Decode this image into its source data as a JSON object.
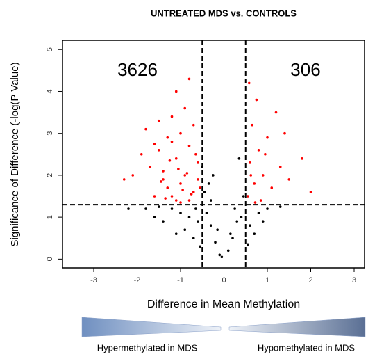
{
  "chart_data": {
    "type": "scatter",
    "title": "UNTREATED MDS vs. CONTROLS",
    "x_label": "Difference  in Mean Methylation",
    "y_label": "Significance of Difference (-log(P Value)",
    "xlim": [
      -3.72,
      3.24
    ],
    "ylim": [
      -0.21,
      5.22
    ],
    "xticks": [
      -3,
      -2,
      -1,
      0,
      1,
      2,
      3
    ],
    "yticks": [
      0,
      1,
      2,
      3,
      4,
      5
    ],
    "thresholds": {
      "x": [
        -0.5,
        0.5
      ],
      "y": 1.3
    },
    "annotations": [
      "3626",
      "306"
    ],
    "direction_labels": [
      "Hypermethylated in MDS",
      "Hypomethylated in MDS"
    ],
    "series": [
      {
        "color": "#000000",
        "x": [
          -0.1,
          0.1,
          -0.2,
          0.2,
          -0.3,
          0.3,
          -0.4,
          0.4,
          -0.6,
          -0.8,
          -1.0,
          -1.2,
          -1.5,
          -0.7,
          0.6,
          0.8,
          1.0,
          -0.45,
          0.45,
          -0.25,
          -0.9,
          -1.4,
          -1.8,
          -2.2,
          0.7,
          1.3,
          -0.35,
          0.15,
          -0.05,
          -1.1,
          -0.55,
          0.55,
          -0.65,
          0.9,
          -0.15,
          0.25,
          -0.5,
          -0.3,
          0.35,
          -1.6
        ],
        "y": [
          0.1,
          0.2,
          0.4,
          0.5,
          0.8,
          0.9,
          1.1,
          1.0,
          0.9,
          1.0,
          1.1,
          1.2,
          1.25,
          0.5,
          0.8,
          1.1,
          1.2,
          1.6,
          1.5,
          2.0,
          0.7,
          0.9,
          1.2,
          1.2,
          0.6,
          1.25,
          1.8,
          0.6,
          0.05,
          0.6,
          0.3,
          0.35,
          1.2,
          0.9,
          0.7,
          1.2,
          2.2,
          1.4,
          2.4,
          1.0
        ]
      },
      {
        "color": "#ff0000",
        "x": [
          -1.2,
          -1.0,
          -0.8,
          -1.4,
          -0.7,
          -1.1,
          -0.9,
          -1.3,
          -0.6,
          -1.5,
          -1.7,
          -1.0,
          -0.8,
          -1.2,
          -0.6,
          -1.9,
          -1.6,
          -1.3,
          -0.9,
          -0.7,
          -1.1,
          -1.4,
          -2.1,
          -0.8,
          -1.0,
          -1.2,
          -0.55,
          -1.8,
          -1.5,
          -0.65,
          -1.35,
          -1.05,
          -0.75,
          -2.3,
          -1.25,
          -0.95,
          -1.45,
          -0.85,
          -1.6,
          -1.1
        ],
        "y": [
          1.5,
          1.8,
          1.4,
          2.1,
          1.6,
          2.4,
          2.0,
          1.7,
          1.9,
          2.6,
          2.2,
          3.0,
          2.7,
          3.4,
          2.3,
          2.5,
          1.5,
          2.9,
          3.6,
          3.2,
          4.0,
          1.9,
          2.0,
          4.3,
          1.35,
          2.8,
          1.7,
          3.1,
          3.3,
          2.5,
          1.45,
          2.15,
          1.55,
          1.9,
          2.35,
          1.65,
          1.85,
          2.05,
          2.75,
          1.4
        ]
      },
      {
        "color": "#ff0000",
        "x": [
          0.55,
          0.7,
          0.6,
          0.9,
          1.1,
          0.8,
          1.3,
          0.65,
          1.0,
          1.5,
          0.75,
          1.8,
          0.58,
          1.2,
          0.85,
          2.0,
          0.95,
          0.62,
          1.4,
          0.72
        ],
        "y": [
          1.5,
          1.8,
          2.3,
          2.0,
          1.7,
          2.6,
          2.2,
          3.2,
          2.9,
          1.9,
          3.8,
          2.4,
          4.2,
          3.5,
          1.4,
          1.6,
          2.5,
          2.0,
          3.0,
          1.35
        ]
      }
    ]
  }
}
